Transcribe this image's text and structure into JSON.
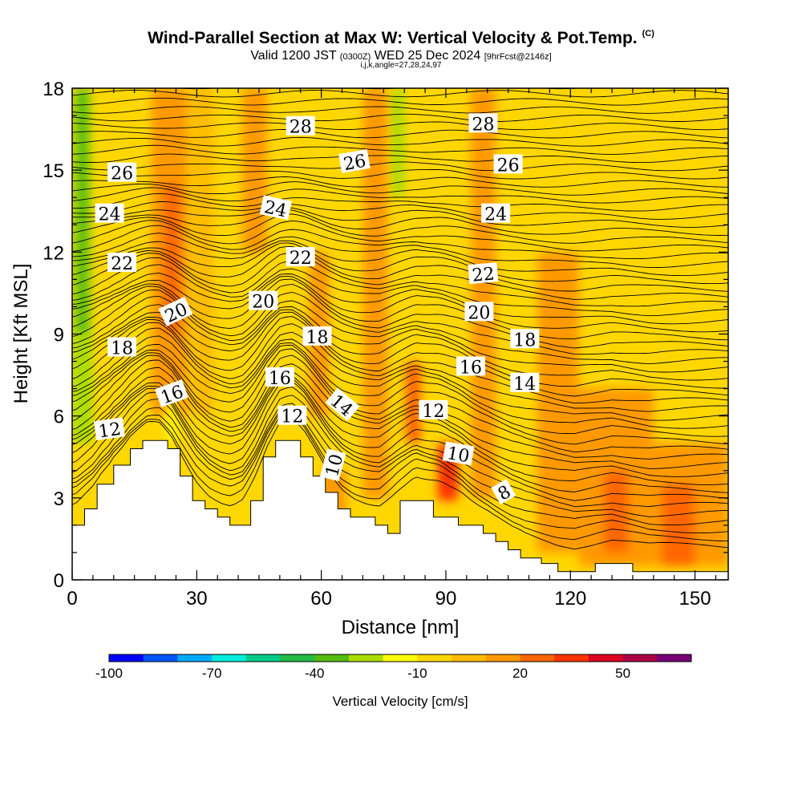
{
  "header": {
    "title": "Wind-Parallel Section at Max W: Vertical Velocity & Pot.Temp.",
    "title_mark": "(C)",
    "valid_prefix": "Valid 1200 JST",
    "valid_utc": "(0300Z)",
    "valid_date": "WED 25 Dec 2024",
    "forecast_info": "[9hrFcst@2146z]",
    "indices": "i,j,k,angle=27,28,24,97"
  },
  "chart_data": {
    "type": "heatmap",
    "xlabel": "Distance [nm]",
    "ylabel": "Height [Kft MSL]",
    "xlim": [
      0,
      158
    ],
    "ylim": [
      0,
      18
    ],
    "xticks": [
      "0",
      "30",
      "60",
      "90",
      "120",
      "150"
    ],
    "xtick_values": [
      0,
      30,
      60,
      90,
      120,
      150
    ],
    "yticks": [
      "0",
      "3",
      "6",
      "9",
      "12",
      "15",
      "18"
    ],
    "ytick_values": [
      0,
      3,
      6,
      9,
      12,
      15,
      18
    ],
    "background_color": "#ffd700",
    "colorbar": {
      "label": "Vertical Velocity [cm/s]",
      "labels": [
        "-100",
        "-70",
        "-40",
        "-10",
        "20",
        "50"
      ],
      "label_values": [
        -100,
        -70,
        -40,
        -10,
        20,
        50
      ],
      "min": -100,
      "max": 70,
      "step": 10,
      "colors": [
        "#0000ff",
        "#0055ff",
        "#00aaff",
        "#00eedd",
        "#00cc88",
        "#22bb44",
        "#55bb11",
        "#aadd00",
        "#ffff00",
        "#ffd700",
        "#ffbb00",
        "#ff9900",
        "#ff6600",
        "#ff3300",
        "#dd0022",
        "#aa0044",
        "#770077"
      ]
    },
    "terrain": [
      [
        0,
        2.0
      ],
      [
        3,
        2.0
      ],
      [
        3,
        2.6
      ],
      [
        6,
        2.6
      ],
      [
        6,
        3.5
      ],
      [
        10,
        3.5
      ],
      [
        10,
        4.2
      ],
      [
        14,
        4.2
      ],
      [
        14,
        4.8
      ],
      [
        17,
        4.8
      ],
      [
        17,
        5.1
      ],
      [
        23,
        5.1
      ],
      [
        23,
        4.8
      ],
      [
        26,
        4.8
      ],
      [
        26,
        3.8
      ],
      [
        29,
        3.8
      ],
      [
        29,
        2.9
      ],
      [
        32,
        2.9
      ],
      [
        32,
        2.6
      ],
      [
        35,
        2.6
      ],
      [
        35,
        2.3
      ],
      [
        38,
        2.3
      ],
      [
        38,
        2.0
      ],
      [
        43,
        2.0
      ],
      [
        43,
        2.9
      ],
      [
        46,
        2.9
      ],
      [
        46,
        4.5
      ],
      [
        49,
        4.5
      ],
      [
        49,
        5.1
      ],
      [
        55,
        5.1
      ],
      [
        55,
        4.5
      ],
      [
        58,
        4.5
      ],
      [
        58,
        3.8
      ],
      [
        61,
        3.8
      ],
      [
        61,
        3.2
      ],
      [
        64,
        3.2
      ],
      [
        64,
        2.6
      ],
      [
        67,
        2.6
      ],
      [
        67,
        2.3
      ],
      [
        73,
        2.3
      ],
      [
        73,
        2.0
      ],
      [
        76,
        2.0
      ],
      [
        76,
        1.7
      ],
      [
        79,
        1.7
      ],
      [
        79,
        2.9
      ],
      [
        87,
        2.9
      ],
      [
        87,
        2.3
      ],
      [
        93,
        2.3
      ],
      [
        93,
        2.0
      ],
      [
        99,
        2.0
      ],
      [
        99,
        1.7
      ],
      [
        102,
        1.7
      ],
      [
        102,
        1.4
      ],
      [
        105,
        1.4
      ],
      [
        105,
        1.1
      ],
      [
        108,
        1.1
      ],
      [
        108,
        0.8
      ],
      [
        113,
        0.8
      ],
      [
        113,
        0.6
      ],
      [
        117,
        0.6
      ],
      [
        117,
        0.3
      ],
      [
        126,
        0.3
      ],
      [
        126,
        0.6
      ],
      [
        135,
        0.6
      ],
      [
        135,
        0.3
      ],
      [
        158,
        0.3
      ]
    ],
    "w_cells": [
      {
        "x0": 0,
        "x1": 5,
        "y0": 5,
        "y1": 18,
        "w": -30
      },
      {
        "x0": 1,
        "x1": 4,
        "y0": 9,
        "y1": 18,
        "w": -40
      },
      {
        "x0": 5,
        "x1": 8,
        "y0": 8,
        "y1": 18,
        "w": -10
      },
      {
        "x0": 19,
        "x1": 28,
        "y0": 6,
        "y1": 18,
        "w": 10
      },
      {
        "x0": 22,
        "x1": 26,
        "y0": 9,
        "y1": 14.5,
        "w": 20
      },
      {
        "x0": 23,
        "x1": 25,
        "y0": 5,
        "y1": 7,
        "w": -20
      },
      {
        "x0": 12,
        "x1": 18,
        "y0": 6,
        "y1": 18,
        "w": -10
      },
      {
        "x0": 29,
        "x1": 34,
        "y0": 6,
        "y1": 18,
        "w": 0
      },
      {
        "x0": 41,
        "x1": 47,
        "y0": 12,
        "y1": 18,
        "w": 10
      },
      {
        "x0": 48,
        "x1": 53,
        "y0": 6,
        "y1": 18,
        "w": -10
      },
      {
        "x0": 57,
        "x1": 62,
        "y0": 6,
        "y1": 12,
        "w": 10
      },
      {
        "x0": 63,
        "x1": 68,
        "y0": 6,
        "y1": 18,
        "w": -10
      },
      {
        "x0": 70,
        "x1": 76,
        "y0": 3,
        "y1": 18,
        "w": 10
      },
      {
        "x0": 77,
        "x1": 80,
        "y0": 14,
        "y1": 18,
        "w": -30
      },
      {
        "x0": 78,
        "x1": 83,
        "y0": 5,
        "y1": 14,
        "w": -10
      },
      {
        "x0": 80,
        "x1": 84,
        "y0": 5,
        "y1": 8,
        "w": 20
      },
      {
        "x0": 86,
        "x1": 89,
        "y0": 10,
        "y1": 18,
        "w": -10
      },
      {
        "x0": 88,
        "x1": 93,
        "y0": 2.9,
        "y1": 5,
        "w": 30
      },
      {
        "x0": 92,
        "x1": 97,
        "y0": 6,
        "y1": 14,
        "w": -10
      },
      {
        "x0": 96,
        "x1": 102,
        "y0": 3,
        "y1": 18,
        "w": 10
      },
      {
        "x0": 105,
        "x1": 112,
        "y0": 7,
        "y1": 18,
        "w": -10
      },
      {
        "x0": 112,
        "x1": 122,
        "y0": 1,
        "y1": 12,
        "w": 10
      },
      {
        "x0": 122,
        "x1": 140,
        "y0": 0.5,
        "y1": 7,
        "w": 10
      },
      {
        "x0": 140,
        "x1": 158,
        "y0": 0.5,
        "y1": 5,
        "w": 10
      },
      {
        "x0": 128,
        "x1": 134,
        "y0": 1,
        "y1": 4,
        "w": 20
      },
      {
        "x0": 142,
        "x1": 150,
        "y0": 0.5,
        "y1": 3.5,
        "w": 20
      },
      {
        "x0": 60,
        "x1": 66,
        "y0": 1.5,
        "y1": 4,
        "w": 10
      }
    ],
    "contour_labels": [
      {
        "text": "12",
        "x": 9,
        "y": 5.5,
        "rot": -8
      },
      {
        "text": "18",
        "x": 12,
        "y": 8.5,
        "rot": 0
      },
      {
        "text": "22",
        "x": 12,
        "y": 11.6,
        "rot": 0
      },
      {
        "text": "24",
        "x": 9,
        "y": 13.4,
        "rot": 0
      },
      {
        "text": "26",
        "x": 12,
        "y": 14.9,
        "rot": 0
      },
      {
        "text": "20",
        "x": 25,
        "y": 9.8,
        "rot": -25
      },
      {
        "text": "16",
        "x": 24,
        "y": 6.8,
        "rot": -20
      },
      {
        "text": "28",
        "x": 55,
        "y": 16.6,
        "rot": 0
      },
      {
        "text": "24",
        "x": 49,
        "y": 13.6,
        "rot": 12
      },
      {
        "text": "22",
        "x": 55,
        "y": 11.8,
        "rot": 0
      },
      {
        "text": "20",
        "x": 46,
        "y": 10.2,
        "rot": 0
      },
      {
        "text": "18",
        "x": 59,
        "y": 8.9,
        "rot": 0
      },
      {
        "text": "16",
        "x": 50,
        "y": 7.4,
        "rot": 0
      },
      {
        "text": "12",
        "x": 53,
        "y": 6.0,
        "rot": 0
      },
      {
        "text": "10",
        "x": 63,
        "y": 4.2,
        "rot": -75
      },
      {
        "text": "26",
        "x": 68,
        "y": 15.3,
        "rot": -10
      },
      {
        "text": "14",
        "x": 65,
        "y": 6.4,
        "rot": 40
      },
      {
        "text": "12",
        "x": 87,
        "y": 6.2,
        "rot": 0
      },
      {
        "text": "10",
        "x": 93,
        "y": 4.6,
        "rot": 10
      },
      {
        "text": "28",
        "x": 99,
        "y": 16.7,
        "rot": 0
      },
      {
        "text": "26",
        "x": 105,
        "y": 15.2,
        "rot": 0
      },
      {
        "text": "24",
        "x": 102,
        "y": 13.4,
        "rot": 0
      },
      {
        "text": "22",
        "x": 99,
        "y": 11.2,
        "rot": -5
      },
      {
        "text": "20",
        "x": 98,
        "y": 9.8,
        "rot": 0
      },
      {
        "text": "18",
        "x": 109,
        "y": 8.8,
        "rot": 0
      },
      {
        "text": "16",
        "x": 96,
        "y": 7.8,
        "rot": 0
      },
      {
        "text": "14",
        "x": 109,
        "y": 7.2,
        "rot": 0
      },
      {
        "text": "8",
        "x": 104,
        "y": 3.2,
        "rot": -30
      }
    ]
  }
}
